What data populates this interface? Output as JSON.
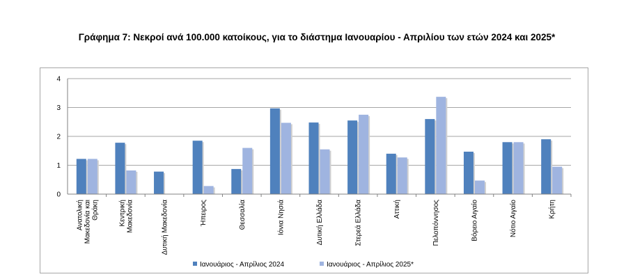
{
  "chart_data": {
    "type": "bar",
    "title": "Γράφημα 7: Νεκροί ανά 100.000 κατοίκους, για το διάστημα Ιανουαρίου - Απριλίου των ετών 2024 και 2025*",
    "xlabel": "",
    "ylabel": "",
    "ylim": [
      0,
      4
    ],
    "yticks": [
      0,
      1,
      2,
      3,
      4
    ],
    "grid": true,
    "legend_position": "bottom",
    "categories": [
      "Ανατολική Μακεδονία και Θράκη",
      "Κεντρική Μακεδονία",
      "Δυτική Μακεδονία",
      "Ήπειρος",
      "Θεσσαλία",
      "Ιόνια Νησιά",
      "Δυτική Ελλάδα",
      "Στερεά Ελλάδα",
      "Αττική",
      "Πελοπόννησος",
      "Βόρειο Αιγαίο",
      "Νότιο Αιγαίο",
      "Κρήτη"
    ],
    "series": [
      {
        "name": "Ιανουάριος - Απρίλιος 2024",
        "color": "#4f81bd",
        "values": [
          1.22,
          1.78,
          0.78,
          1.85,
          0.87,
          2.97,
          2.48,
          2.55,
          1.4,
          2.6,
          1.47,
          1.8,
          1.9
        ]
      },
      {
        "name": "Ιανουάριος - Απρίλιος 2025*",
        "color": "#9fb4e0",
        "values": [
          1.22,
          0.82,
          0.0,
          0.28,
          1.6,
          2.47,
          1.55,
          2.75,
          1.27,
          3.37,
          0.47,
          1.8,
          0.95
        ]
      }
    ],
    "gridline_color": "#a6a6a6",
    "axis_color": "#808080"
  }
}
